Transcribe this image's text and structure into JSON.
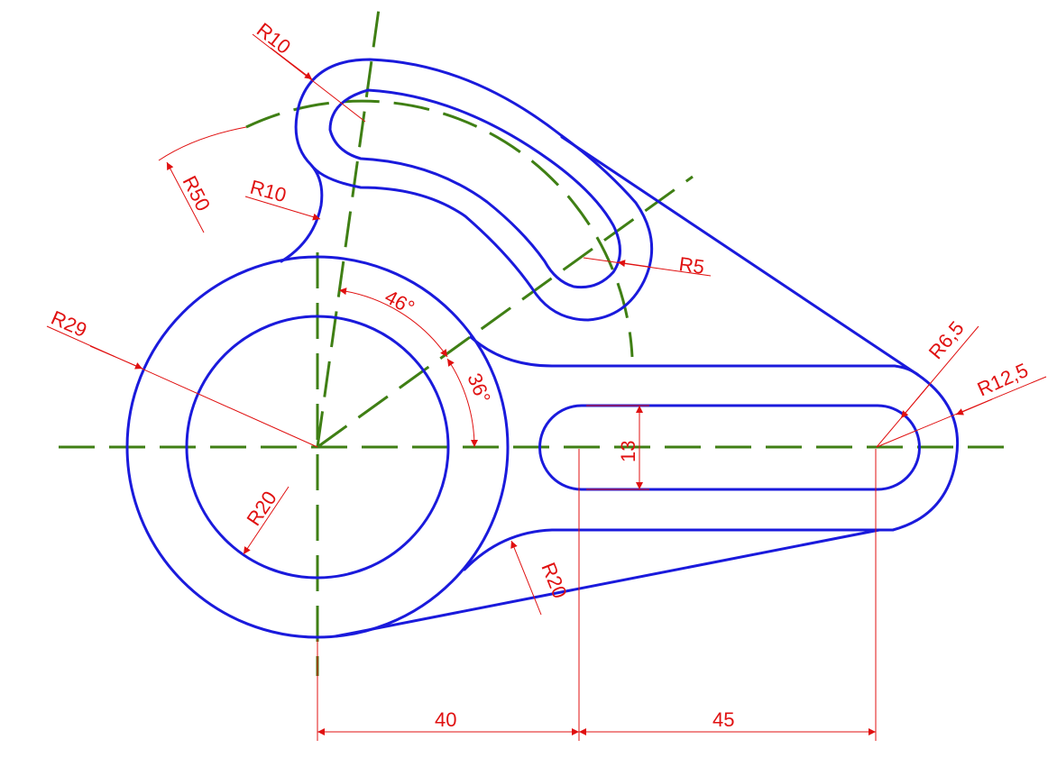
{
  "dimensions": {
    "r10_top": "R10",
    "r50": "R50",
    "r10_fillet": "R10",
    "r5": "R5",
    "r29": "R29",
    "angle_46": "46°",
    "angle_36": "36°",
    "r6_5": "R6,5",
    "r12_5": "R12,5",
    "r20_inner": "R20",
    "r20_fillet": "R20",
    "slot_width": "13",
    "dist_40": "40",
    "dist_45": "45"
  },
  "colors": {
    "outline": "#1a1adc",
    "centerline": "#3f7f14",
    "dimension": "#e01010",
    "background": "#ffffff"
  }
}
